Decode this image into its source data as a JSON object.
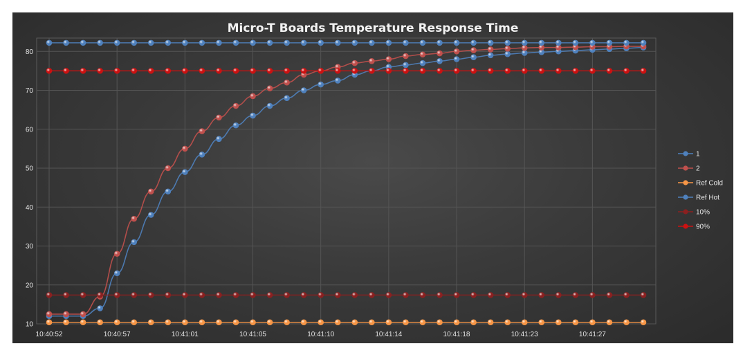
{
  "chart_data": {
    "type": "line",
    "title": "Micro-T Boards Temperature Response Time",
    "xlabel": "",
    "ylabel": "",
    "ylim": [
      10,
      82
    ],
    "yticks": [
      10,
      20,
      30,
      40,
      50,
      60,
      70,
      80
    ],
    "x_tick_labels": [
      "10:40:52",
      "10:40:57",
      "10:41:01",
      "10:41:05",
      "10:41:10",
      "10:41:14",
      "10:41:18",
      "10:41:23",
      "10:41:27"
    ],
    "x_tick_index": [
      0,
      4,
      8,
      12,
      16,
      20,
      24,
      28,
      32
    ],
    "num_points": 36,
    "grid": true,
    "legend_position": "right",
    "series": [
      {
        "name": "1",
        "color": "#4f81bd",
        "values": [
          12.0,
          12.0,
          12.0,
          14.0,
          23.0,
          31.0,
          38.0,
          44.0,
          49.0,
          53.5,
          57.5,
          61.0,
          63.5,
          66.0,
          68.0,
          70.0,
          71.5,
          72.5,
          74.0,
          75.0,
          76.0,
          76.5,
          77.0,
          77.5,
          78.0,
          78.5,
          79.0,
          79.3,
          79.6,
          79.8,
          80.0,
          80.2,
          80.4,
          80.6,
          80.8,
          81.0
        ]
      },
      {
        "name": "2",
        "color": "#c0504d",
        "values": [
          12.5,
          12.5,
          12.5,
          17.0,
          28.0,
          37.0,
          44.0,
          50.0,
          55.0,
          59.5,
          63.0,
          66.0,
          68.5,
          70.5,
          72.0,
          74.0,
          75.0,
          76.0,
          77.0,
          77.5,
          78.0,
          78.8,
          79.2,
          79.5,
          80.0,
          80.3,
          80.5,
          80.7,
          80.9,
          81.0,
          81.0,
          81.1,
          81.2,
          81.2,
          81.3,
          81.3
        ]
      },
      {
        "name": "Ref Cold",
        "color": "#f79646",
        "values": [
          10.4,
          10.4,
          10.4,
          10.4,
          10.4,
          10.4,
          10.4,
          10.4,
          10.4,
          10.4,
          10.4,
          10.4,
          10.4,
          10.4,
          10.4,
          10.4,
          10.4,
          10.4,
          10.4,
          10.4,
          10.4,
          10.4,
          10.4,
          10.4,
          10.4,
          10.4,
          10.4,
          10.4,
          10.4,
          10.4,
          10.4,
          10.4,
          10.4,
          10.4,
          10.4,
          10.4
        ]
      },
      {
        "name": "Ref Hot",
        "color": "#4f81bd",
        "values": [
          82.2,
          82.2,
          82.2,
          82.2,
          82.2,
          82.2,
          82.2,
          82.2,
          82.2,
          82.2,
          82.2,
          82.2,
          82.2,
          82.2,
          82.2,
          82.2,
          82.2,
          82.2,
          82.2,
          82.2,
          82.2,
          82.2,
          82.2,
          82.2,
          82.2,
          82.2,
          82.2,
          82.2,
          82.2,
          82.2,
          82.2,
          82.2,
          82.2,
          82.2,
          82.2,
          82.2
        ]
      },
      {
        "name": "10%",
        "color": "#8b2020",
        "values": [
          17.4,
          17.4,
          17.4,
          17.4,
          17.4,
          17.4,
          17.4,
          17.4,
          17.4,
          17.4,
          17.4,
          17.4,
          17.4,
          17.4,
          17.4,
          17.4,
          17.4,
          17.4,
          17.4,
          17.4,
          17.4,
          17.4,
          17.4,
          17.4,
          17.4,
          17.4,
          17.4,
          17.4,
          17.4,
          17.4,
          17.4,
          17.4,
          17.4,
          17.4,
          17.4,
          17.4
        ]
      },
      {
        "name": "90%",
        "color": "#cc1111",
        "values": [
          75.0,
          75.0,
          75.0,
          75.0,
          75.0,
          75.0,
          75.0,
          75.0,
          75.0,
          75.0,
          75.0,
          75.0,
          75.0,
          75.0,
          75.0,
          75.0,
          75.0,
          75.0,
          75.0,
          75.0,
          75.0,
          75.0,
          75.0,
          75.0,
          75.0,
          75.0,
          75.0,
          75.0,
          75.0,
          75.0,
          75.0,
          75.0,
          75.0,
          75.0,
          75.0,
          75.0
        ]
      }
    ]
  }
}
